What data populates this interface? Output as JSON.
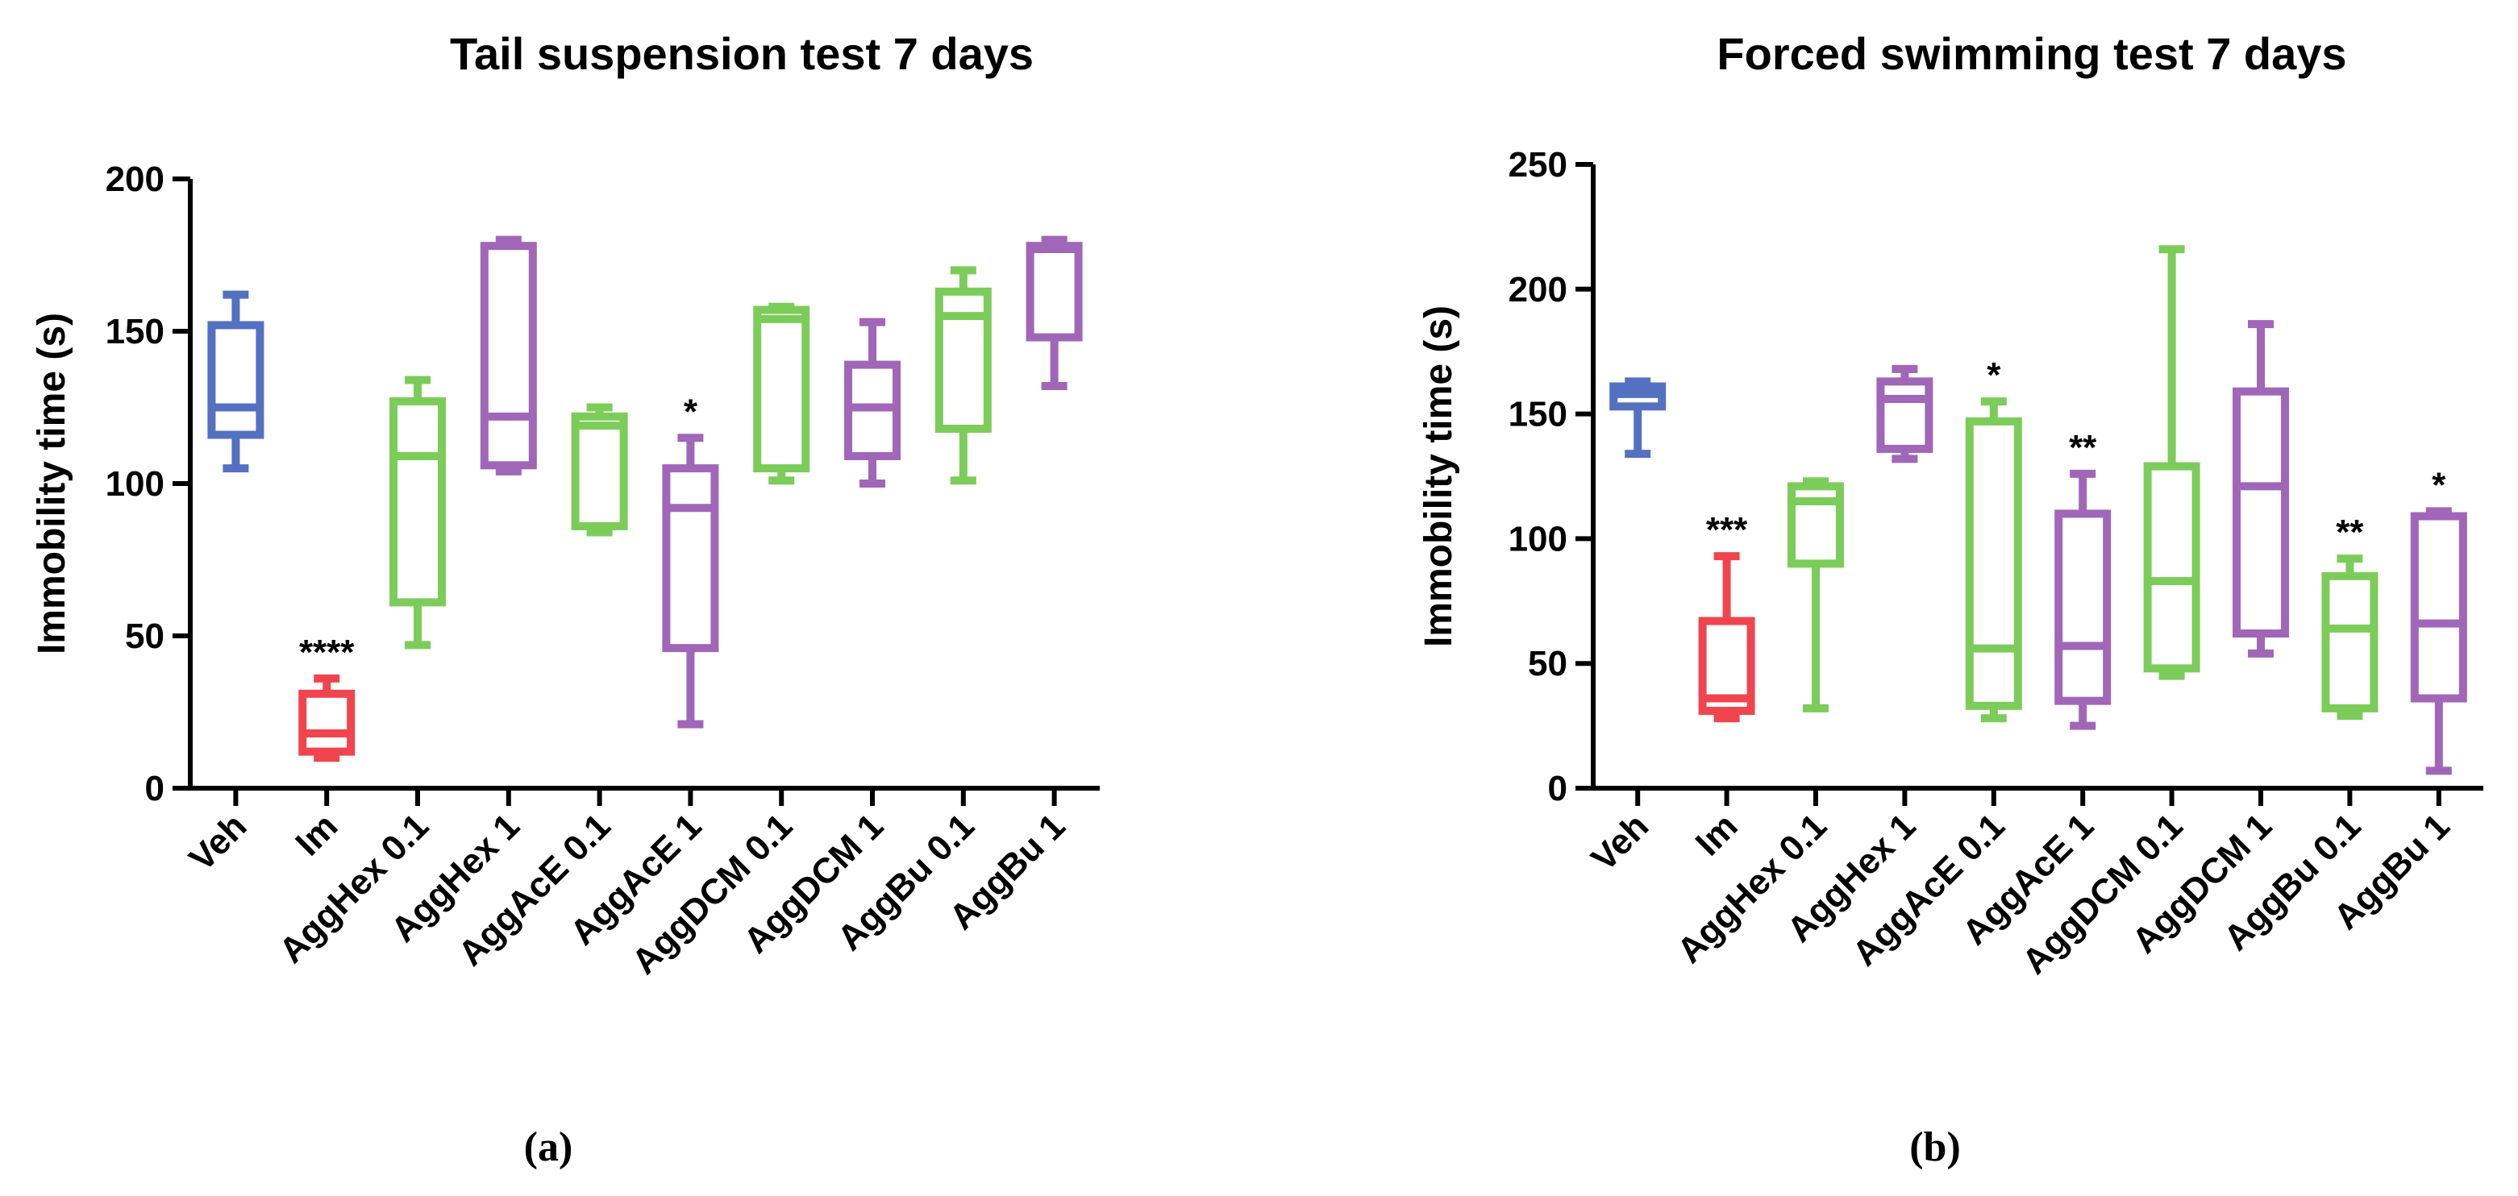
{
  "chart_data": [
    {
      "type": "box",
      "title": "Tail suspension test 7 days",
      "y_label": "Immobility time (s)",
      "panel_label": "(a)",
      "categories": [
        "Veh",
        "Im",
        "AggHex 0.1",
        "AggHex 1",
        "AggAcE 0.1",
        "AggAcE 1",
        "AggDCM 0.1",
        "AggDCM 1",
        "AggBu 0.1",
        "AggBu 1"
      ],
      "boxes": [
        {
          "min": 105,
          "q1": 116,
          "median": 125,
          "q3": 152,
          "max": 162,
          "color": "#5470c0"
        },
        {
          "min": 10,
          "q1": 12,
          "median": 18,
          "q3": 31,
          "max": 36,
          "color": "#f0454f"
        },
        {
          "min": 47,
          "q1": 61,
          "median": 109,
          "q3": 127,
          "max": 134,
          "color": "#7ccc5a"
        },
        {
          "min": 104,
          "q1": 106,
          "median": 122,
          "q3": 178,
          "max": 180,
          "color": "#a066b8"
        },
        {
          "min": 84,
          "q1": 86,
          "median": 119,
          "q3": 122,
          "max": 125,
          "color": "#7ccc5a"
        },
        {
          "min": 21,
          "q1": 46,
          "median": 92,
          "q3": 105,
          "max": 115,
          "color": "#a066b8"
        },
        {
          "min": 101,
          "q1": 105,
          "median": 154,
          "q3": 157,
          "max": 158,
          "color": "#7ccc5a"
        },
        {
          "min": 100,
          "q1": 109,
          "median": 125,
          "q3": 139,
          "max": 153,
          "color": "#a066b8"
        },
        {
          "min": 101,
          "q1": 118,
          "median": 155,
          "q3": 163,
          "max": 170,
          "color": "#7ccc5a"
        },
        {
          "min": 132,
          "q1": 148,
          "median": 177,
          "q3": 178,
          "max": 180,
          "color": "#a066b8"
        }
      ],
      "significance": [
        null,
        "****",
        null,
        null,
        null,
        "*",
        null,
        null,
        null,
        null
      ],
      "ylim": [
        0,
        200
      ],
      "yticks": [
        0,
        50,
        100,
        150,
        200
      ]
    },
    {
      "type": "box",
      "title": "Forced swimming test 7 days",
      "y_label": "Immobility time (s)",
      "panel_label": "(b)",
      "categories": [
        "Veh",
        "Im",
        "AggHex 0.1",
        "AggHex 1",
        "AggAcE 0.1",
        "AggAcE 1",
        "AggDCM 0.1",
        "AggDCM 1",
        "AggBu 0.1",
        "AggBu 1"
      ],
      "boxes": [
        {
          "min": 134,
          "q1": 153,
          "median": 158,
          "q3": 161,
          "max": 163,
          "color": "#5470c0"
        },
        {
          "min": 28,
          "q1": 31,
          "median": 36,
          "q3": 67,
          "max": 93,
          "color": "#f0454f"
        },
        {
          "min": 32,
          "q1": 90,
          "median": 115,
          "q3": 121,
          "max": 123,
          "color": "#7ccc5a"
        },
        {
          "min": 132,
          "q1": 136,
          "median": 156,
          "q3": 163,
          "max": 168,
          "color": "#a066b8"
        },
        {
          "min": 28,
          "q1": 33,
          "median": 56,
          "q3": 147,
          "max": 155,
          "color": "#7ccc5a"
        },
        {
          "min": 25,
          "q1": 35,
          "median": 57,
          "q3": 110,
          "max": 126,
          "color": "#a066b8"
        },
        {
          "min": 45,
          "q1": 48,
          "median": 83,
          "q3": 129,
          "max": 216,
          "color": "#7ccc5a"
        },
        {
          "min": 54,
          "q1": 62,
          "median": 121,
          "q3": 159,
          "max": 186,
          "color": "#a066b8"
        },
        {
          "min": 29,
          "q1": 32,
          "median": 64,
          "q3": 85,
          "max": 92,
          "color": "#7ccc5a"
        },
        {
          "min": 7,
          "q1": 36,
          "median": 66,
          "q3": 109,
          "max": 111,
          "color": "#a066b8"
        }
      ],
      "significance": [
        null,
        "***",
        null,
        null,
        "*",
        "**",
        null,
        null,
        "**",
        "*"
      ],
      "ylim": [
        0,
        250
      ],
      "yticks": [
        0,
        50,
        100,
        150,
        200,
        250
      ]
    }
  ]
}
